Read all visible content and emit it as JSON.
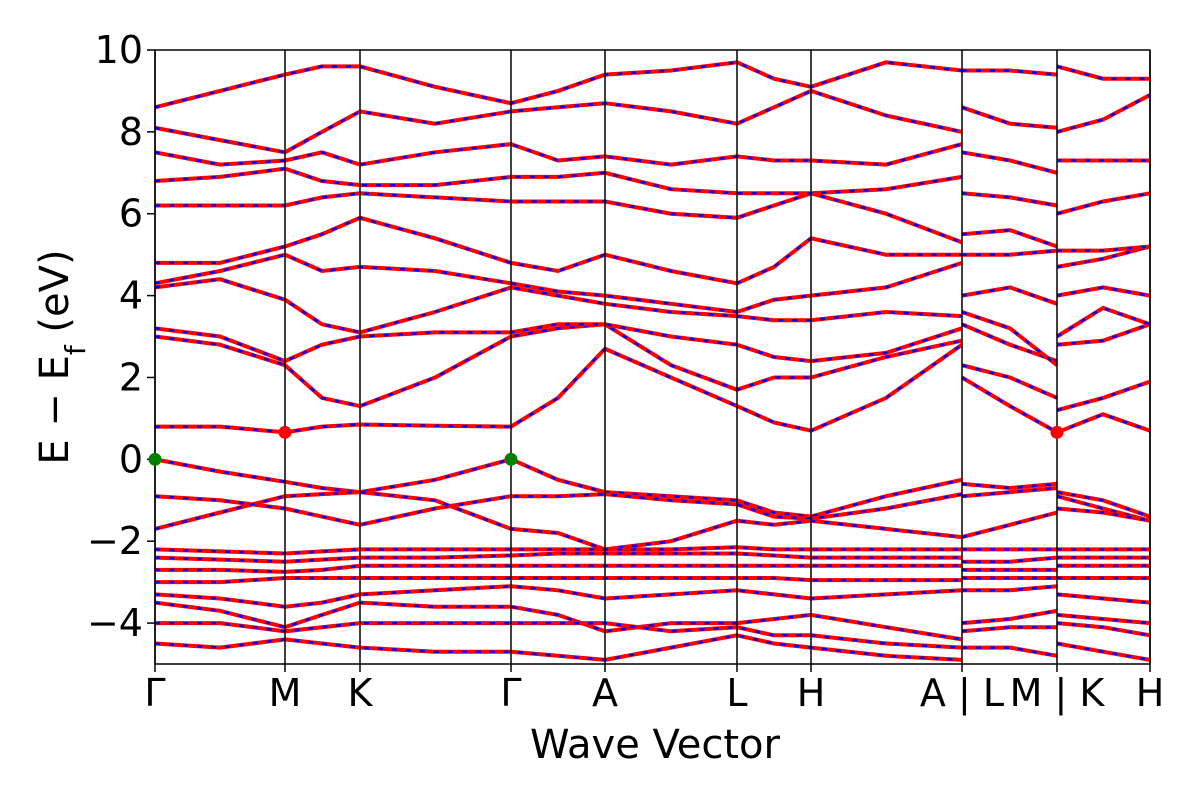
{
  "chart_data": {
    "type": "line",
    "xlabel": "Wave Vector",
    "ylabel": [
      "E − E",
      "f",
      " (eV)"
    ],
    "color": "#ff0000",
    "dash_color": "#0000ff",
    "vlines": true,
    "xlim": [
      0,
      995
    ],
    "ylim": [
      -5,
      10
    ],
    "xticks": [
      {
        "value": 0,
        "label": "Γ"
      },
      {
        "value": 130,
        "label": "M"
      },
      {
        "value": 205,
        "label": "K"
      },
      {
        "value": 356,
        "label": "Γ"
      },
      {
        "value": 450,
        "label": "A"
      },
      {
        "value": 582,
        "label": "L"
      },
      {
        "value": 656,
        "label": "H"
      },
      {
        "value": 807,
        "label": "A | L"
      },
      {
        "value": 902,
        "label": "M | K"
      },
      {
        "value": 995,
        "label": "H"
      }
    ],
    "yticks": [
      {
        "value": -4,
        "label": "−4"
      },
      {
        "value": -2,
        "label": "−2"
      },
      0,
      2,
      4,
      6,
      8,
      10
    ],
    "x": [
      0,
      65,
      130,
      167,
      205,
      280,
      356,
      403,
      450,
      516,
      582,
      619,
      656,
      731,
      807,
      807,
      807,
      855,
      902,
      902,
      902,
      948,
      995
    ],
    "series": [
      {
        "values": [
          0,
          -0.3,
          -0.55,
          -0.7,
          -0.8,
          -0.5,
          0,
          -0.5,
          -0.8,
          -0.9,
          -1.0,
          -1.3,
          -1.4,
          -0.9,
          -0.5,
          null,
          -0.6,
          -0.7,
          -0.6,
          null,
          -0.8,
          -1.0,
          -1.4
        ]
      },
      {
        "values": [
          -0.9,
          -1.0,
          -1.2,
          -1.4,
          -1.6,
          -1.2,
          -0.9,
          -0.9,
          -0.85,
          -1.0,
          -1.1,
          -1.4,
          -1.45,
          -1.2,
          -0.85,
          null,
          -0.9,
          -0.8,
          -0.7,
          null,
          -0.9,
          -1.2,
          -1.5
        ]
      },
      {
        "values": [
          -1.7,
          -1.3,
          -0.9,
          -0.85,
          -0.8,
          -1.0,
          -1.7,
          -1.8,
          -2.2,
          -2.0,
          -1.5,
          -1.6,
          -1.5,
          -1.7,
          -1.9,
          null,
          -1.9,
          -1.6,
          -1.3,
          null,
          -1.2,
          -1.3,
          -1.5
        ]
      },
      {
        "values": [
          -2.2,
          -2.25,
          -2.3,
          -2.25,
          -2.2,
          -2.2,
          -2.2,
          -2.2,
          -2.2,
          -2.2,
          -2.15,
          -2.2,
          -2.2,
          -2.2,
          -2.2,
          null,
          -2.2,
          -2.2,
          -2.2,
          null,
          -2.2,
          -2.2,
          -2.2
        ]
      },
      {
        "values": [
          -2.4,
          -2.45,
          -2.5,
          -2.45,
          -2.4,
          -2.4,
          -2.35,
          -2.3,
          -2.3,
          -2.3,
          -2.3,
          -2.35,
          -2.4,
          -2.4,
          -2.4,
          null,
          -2.5,
          -2.5,
          -2.4,
          null,
          -2.4,
          -2.4,
          -2.4
        ]
      },
      {
        "values": [
          -2.7,
          -2.7,
          -2.75,
          -2.7,
          -2.6,
          -2.6,
          -2.6,
          -2.6,
          -2.6,
          -2.6,
          -2.6,
          -2.6,
          -2.6,
          -2.6,
          -2.6,
          null,
          -2.7,
          -2.7,
          -2.7,
          null,
          -2.6,
          -2.6,
          -2.6
        ]
      },
      {
        "values": [
          -3.0,
          -3.0,
          -2.9,
          -2.9,
          -2.9,
          -2.9,
          -2.9,
          -2.9,
          -2.9,
          -2.9,
          -2.9,
          -2.9,
          -2.95,
          -2.95,
          -2.95,
          null,
          -2.9,
          -2.9,
          -2.9,
          null,
          -2.9,
          -2.9,
          -2.9
        ]
      },
      {
        "values": [
          -3.3,
          -3.4,
          -3.6,
          -3.5,
          -3.3,
          -3.2,
          -3.1,
          -3.2,
          -3.4,
          -3.3,
          -3.2,
          -3.3,
          -3.4,
          -3.3,
          -3.2,
          null,
          -3.2,
          -3.2,
          -3.1,
          null,
          -3.3,
          -3.4,
          -3.5
        ]
      },
      {
        "values": [
          -3.5,
          -3.7,
          -4.1,
          -3.8,
          -3.5,
          -3.6,
          -3.6,
          -3.8,
          -4.2,
          -4.0,
          -4.0,
          -3.9,
          -3.8,
          -4.1,
          -4.4,
          null,
          -4.0,
          -3.9,
          -3.7,
          null,
          -3.8,
          -3.9,
          -4.0
        ]
      },
      {
        "values": [
          -4.0,
          -4.0,
          -4.2,
          -4.1,
          -4.0,
          -4.0,
          -4.0,
          -4.0,
          -4.0,
          -4.2,
          -4.1,
          -4.3,
          -4.3,
          -4.5,
          -4.6,
          null,
          -4.2,
          -4.1,
          -4.1,
          null,
          -4.0,
          -4.1,
          -4.3
        ]
      },
      {
        "values": [
          -4.5,
          -4.6,
          -4.4,
          -4.5,
          -4.6,
          -4.7,
          -4.7,
          -4.8,
          -4.9,
          -4.6,
          -4.3,
          -4.5,
          -4.6,
          -4.8,
          -4.9,
          null,
          -4.6,
          -4.6,
          -4.8,
          null,
          -4.5,
          -4.7,
          -4.9
        ]
      },
      {
        "values": [
          0.8,
          0.8,
          0.66,
          0.8,
          0.85,
          0.82,
          0.8,
          1.5,
          2.7,
          2.0,
          1.3,
          0.9,
          0.7,
          1.5,
          2.8,
          null,
          2.0,
          1.3,
          0.66,
          null,
          0.66,
          1.1,
          0.7
        ]
      },
      {
        "values": [
          3.0,
          2.8,
          2.3,
          1.5,
          1.3,
          2.0,
          3.0,
          3.2,
          3.3,
          2.3,
          1.7,
          2.0,
          2.0,
          2.5,
          2.9,
          null,
          2.3,
          2.0,
          1.5,
          null,
          1.2,
          1.5,
          1.9
        ]
      },
      {
        "values": [
          3.2,
          3.0,
          2.4,
          2.8,
          3.0,
          3.1,
          3.1,
          3.3,
          3.3,
          3.0,
          2.8,
          2.5,
          2.4,
          2.6,
          3.2,
          null,
          3.3,
          2.8,
          2.4,
          null,
          2.8,
          2.9,
          3.3
        ]
      },
      {
        "values": [
          4.2,
          4.4,
          3.9,
          3.3,
          3.1,
          3.6,
          4.2,
          4.0,
          3.8,
          3.6,
          3.5,
          3.4,
          3.4,
          3.6,
          3.5,
          null,
          3.6,
          3.2,
          2.3,
          null,
          3.0,
          3.7,
          3.3
        ]
      },
      {
        "values": [
          4.3,
          4.6,
          5.0,
          4.6,
          4.7,
          4.6,
          4.3,
          4.1,
          4.0,
          3.8,
          3.6,
          3.9,
          4.0,
          4.2,
          4.8,
          null,
          4.0,
          4.2,
          3.8,
          null,
          4.0,
          4.2,
          4.0
        ]
      },
      {
        "values": [
          4.8,
          4.8,
          5.2,
          5.5,
          5.9,
          5.4,
          4.8,
          4.6,
          5.0,
          4.6,
          4.3,
          4.7,
          5.4,
          5.0,
          5.0,
          null,
          5.0,
          5.0,
          5.1,
          null,
          4.7,
          4.9,
          5.2
        ]
      },
      {
        "values": [
          6.2,
          6.2,
          6.2,
          6.4,
          6.5,
          6.4,
          6.3,
          6.3,
          6.3,
          6.0,
          5.9,
          6.2,
          6.5,
          6.0,
          5.3,
          null,
          5.5,
          5.6,
          5.2,
          null,
          5.1,
          5.1,
          5.2
        ]
      },
      {
        "values": [
          6.8,
          6.9,
          7.1,
          6.8,
          6.7,
          6.7,
          6.9,
          6.9,
          7.0,
          6.6,
          6.5,
          6.5,
          6.5,
          6.6,
          6.9,
          null,
          6.5,
          6.4,
          6.2,
          null,
          6.0,
          6.3,
          6.5
        ]
      },
      {
        "values": [
          7.5,
          7.2,
          7.3,
          7.5,
          7.2,
          7.5,
          7.7,
          7.3,
          7.4,
          7.2,
          7.4,
          7.3,
          7.3,
          7.2,
          7.7,
          null,
          7.5,
          7.3,
          7.0,
          null,
          7.3,
          7.3,
          7.3
        ]
      },
      {
        "values": [
          8.1,
          7.8,
          7.5,
          8.0,
          8.5,
          8.2,
          8.5,
          8.6,
          8.7,
          8.5,
          8.2,
          8.6,
          9.0,
          8.4,
          8.0,
          null,
          8.6,
          8.2,
          8.1,
          null,
          8.0,
          8.3,
          8.9
        ]
      },
      {
        "values": [
          8.6,
          9.0,
          9.4,
          9.6,
          9.6,
          9.1,
          8.7,
          9.0,
          9.4,
          9.5,
          9.7,
          9.3,
          9.1,
          9.7,
          9.5,
          null,
          9.5,
          9.5,
          9.4,
          null,
          9.6,
          9.3,
          9.3
        ]
      }
    ],
    "points": [
      {
        "x": [
          0,
          356
        ],
        "values": [
          0,
          0
        ],
        "color": "#008000"
      },
      {
        "x": [
          130,
          902
        ],
        "values": [
          0.66,
          0.66
        ],
        "color": "#ff0000"
      }
    ]
  }
}
